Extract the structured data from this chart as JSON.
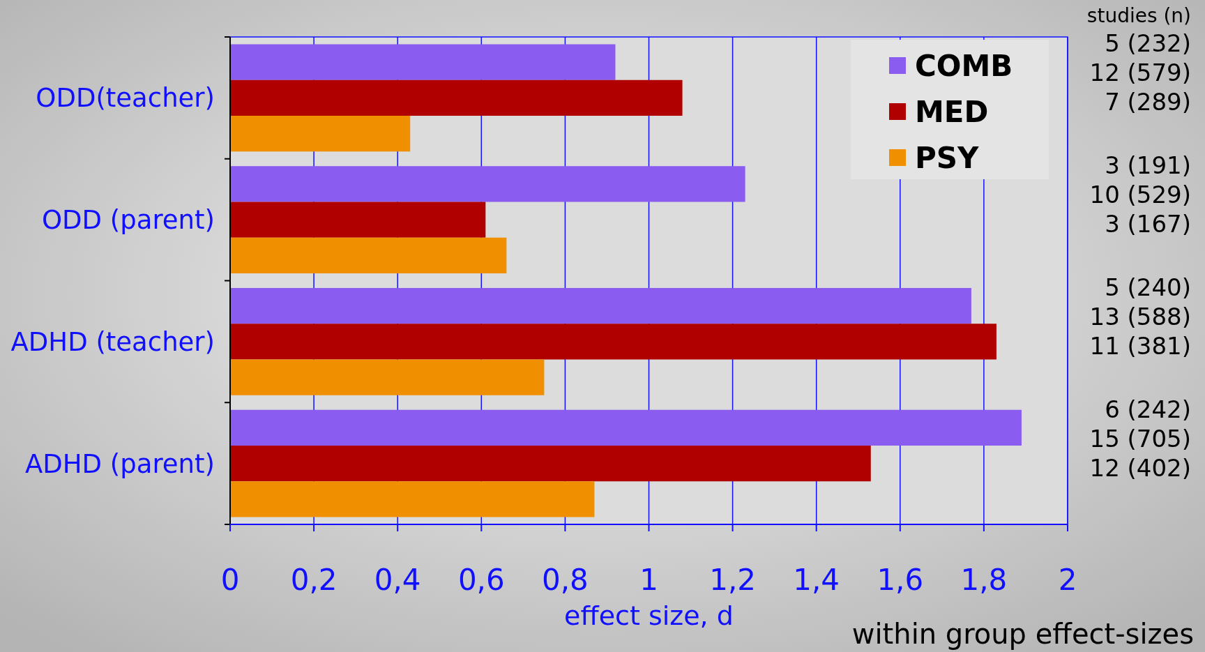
{
  "chart_data": {
    "type": "bar",
    "orientation": "horizontal",
    "xlabel": "effect size, d",
    "categories": [
      "ODD(teacher)",
      "ODD (parent)",
      "ADHD (teacher)",
      "ADHD (parent)"
    ],
    "series": [
      {
        "name": "COMB",
        "color": "#8a5cf0",
        "values": [
          0.92,
          1.23,
          1.77,
          1.89
        ]
      },
      {
        "name": "MED",
        "color": "#b00000",
        "values": [
          1.08,
          0.61,
          1.83,
          1.53
        ]
      },
      {
        "name": "PSY",
        "color": "#f09000",
        "values": [
          0.43,
          0.66,
          0.75,
          0.87
        ]
      }
    ],
    "xlim": [
      0,
      2
    ],
    "xticks": [
      0,
      {
        "value": 0.2,
        "label": "0,2"
      },
      {
        "value": 0.4,
        "label": "0,4"
      },
      {
        "value": 0.6,
        "label": "0,6"
      },
      {
        "value": 0.8,
        "label": "0,8"
      },
      1,
      {
        "value": 1.2,
        "label": "1,2"
      },
      {
        "value": 1.4,
        "label": "1,4"
      },
      {
        "value": 1.6,
        "label": "1,6"
      },
      {
        "value": 1.8,
        "label": "1,8"
      },
      2
    ],
    "grid": "x",
    "legend": "top right",
    "annotations": [
      "studies (n)",
      "5 (232)\n12 (579)\n7 (289)",
      "3 (191)\n10 (529)\n3 (167)",
      "5 (240)\n13 (588)\n11 (381)",
      "6 (242)\n15 (705)\n12 (402)",
      "within group effect-sizes"
    ]
  }
}
